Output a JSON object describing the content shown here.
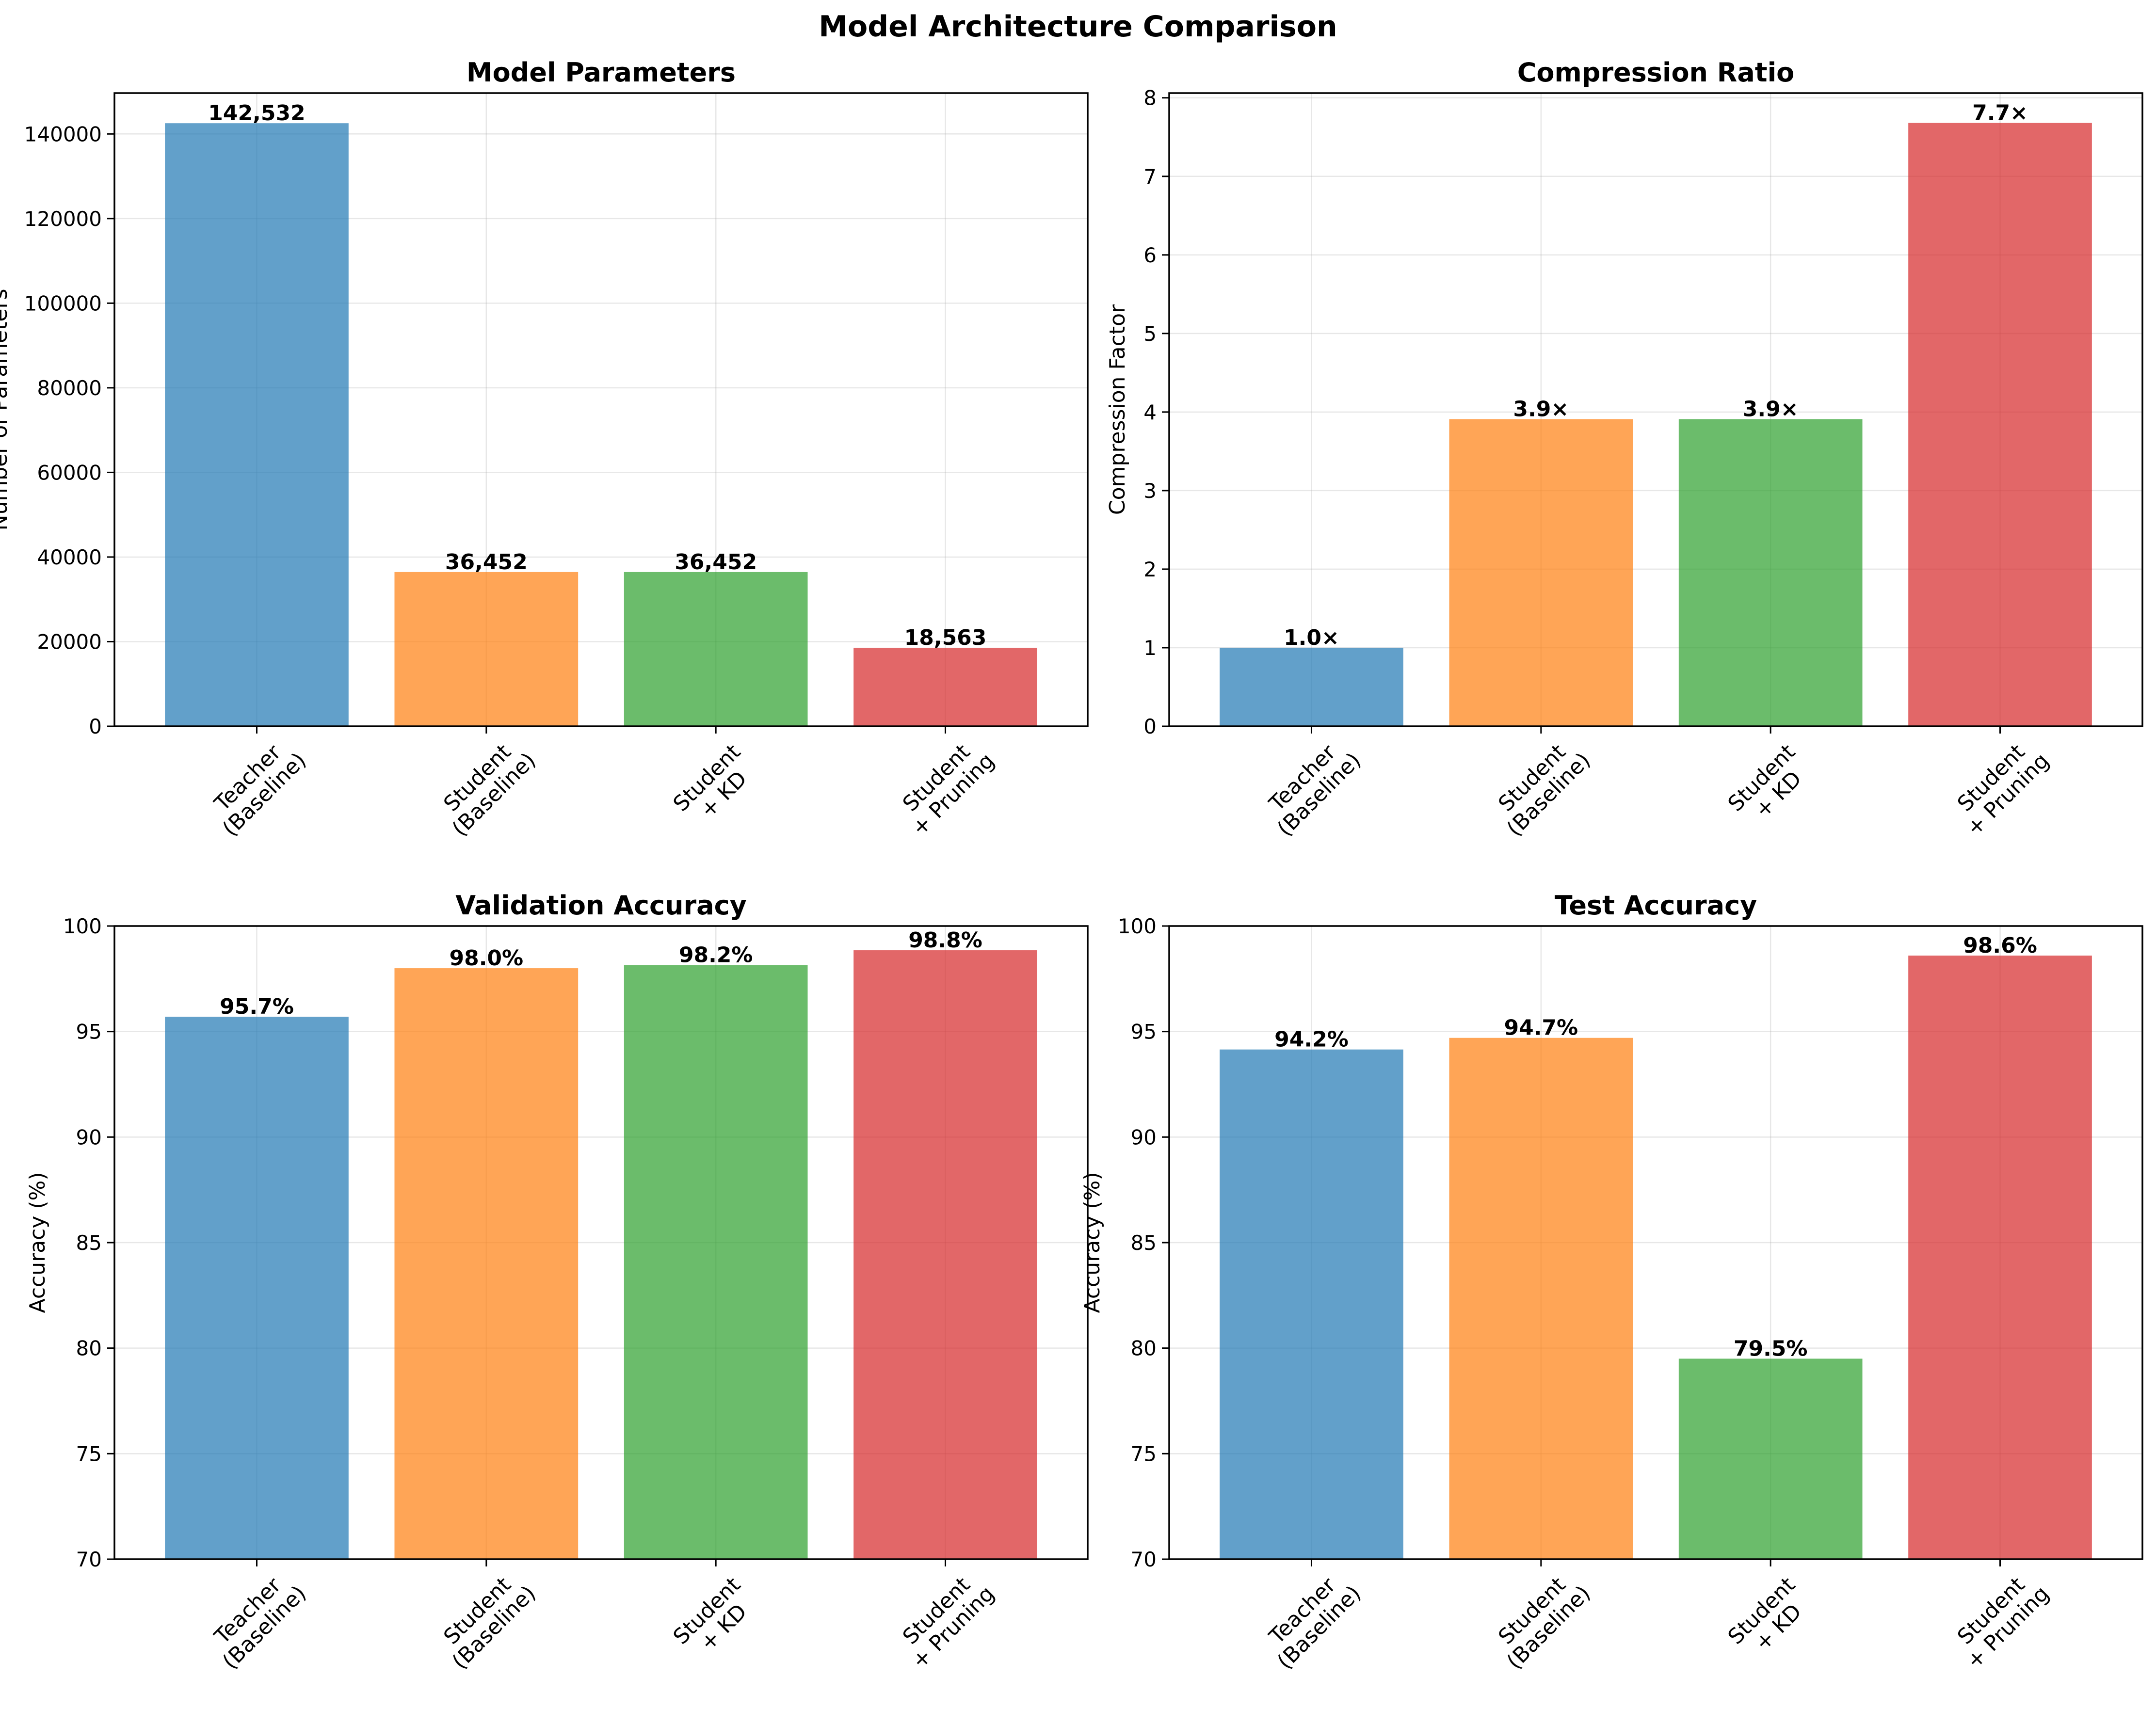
{
  "figure_title": "Model Architecture Comparison",
  "colors": {
    "series": [
      "#1f77b4",
      "#ff7f0e",
      "#2ca02c",
      "#d62728"
    ],
    "bar_opacity": 0.7,
    "grid": "#b0b0b0",
    "axes": "#000000"
  },
  "chart_data": [
    {
      "type": "bar",
      "title": "Model Parameters",
      "ylabel": "Number of Parameters",
      "categories": [
        [
          "Teacher",
          "(Baseline)"
        ],
        [
          "Student",
          "(Baseline)"
        ],
        [
          "Student",
          "+ KD"
        ],
        [
          "Student",
          "+ Pruning"
        ]
      ],
      "values": [
        142532,
        36452,
        36452,
        18563
      ],
      "data_labels": [
        "142,532",
        "36,452",
        "36,452",
        "18,563"
      ],
      "ylim": [
        0,
        149659
      ],
      "yticks": [
        0,
        20000,
        40000,
        60000,
        80000,
        100000,
        120000,
        140000
      ],
      "grid": true
    },
    {
      "type": "bar",
      "title": "Compression Ratio",
      "ylabel": "Compression Factor",
      "categories": [
        [
          "Teacher",
          "(Baseline)"
        ],
        [
          "Student",
          "(Baseline)"
        ],
        [
          "Student",
          "+ KD"
        ],
        [
          "Student",
          "+ Pruning"
        ]
      ],
      "values": [
        1.0,
        3.91,
        3.91,
        7.68
      ],
      "data_labels": [
        "1.0×",
        "3.9×",
        "3.9×",
        "7.7×"
      ],
      "ylim": [
        0,
        8.06
      ],
      "yticks": [
        0,
        1,
        2,
        3,
        4,
        5,
        6,
        7,
        8
      ],
      "grid": true
    },
    {
      "type": "bar",
      "title": "Validation Accuracy",
      "ylabel": "Accuracy (%)",
      "categories": [
        [
          "Teacher",
          "(Baseline)"
        ],
        [
          "Student",
          "(Baseline)"
        ],
        [
          "Student",
          "+ KD"
        ],
        [
          "Student",
          "+ Pruning"
        ]
      ],
      "values": [
        95.7,
        98.0,
        98.15,
        98.85
      ],
      "data_labels": [
        "95.7%",
        "98.0%",
        "98.2%",
        "98.8%"
      ],
      "ylim": [
        70,
        100
      ],
      "yticks": [
        70,
        75,
        80,
        85,
        90,
        95,
        100
      ],
      "grid": true
    },
    {
      "type": "bar",
      "title": "Test Accuracy",
      "ylabel": "Accuracy (%)",
      "categories": [
        [
          "Teacher",
          "(Baseline)"
        ],
        [
          "Student",
          "(Baseline)"
        ],
        [
          "Student",
          "+ KD"
        ],
        [
          "Student",
          "+ Pruning"
        ]
      ],
      "values": [
        94.15,
        94.7,
        79.5,
        98.6
      ],
      "data_labels": [
        "94.2%",
        "94.7%",
        "79.5%",
        "98.6%"
      ],
      "ylim": [
        70,
        100
      ],
      "yticks": [
        70,
        75,
        80,
        85,
        90,
        95,
        100
      ],
      "grid": true
    }
  ]
}
